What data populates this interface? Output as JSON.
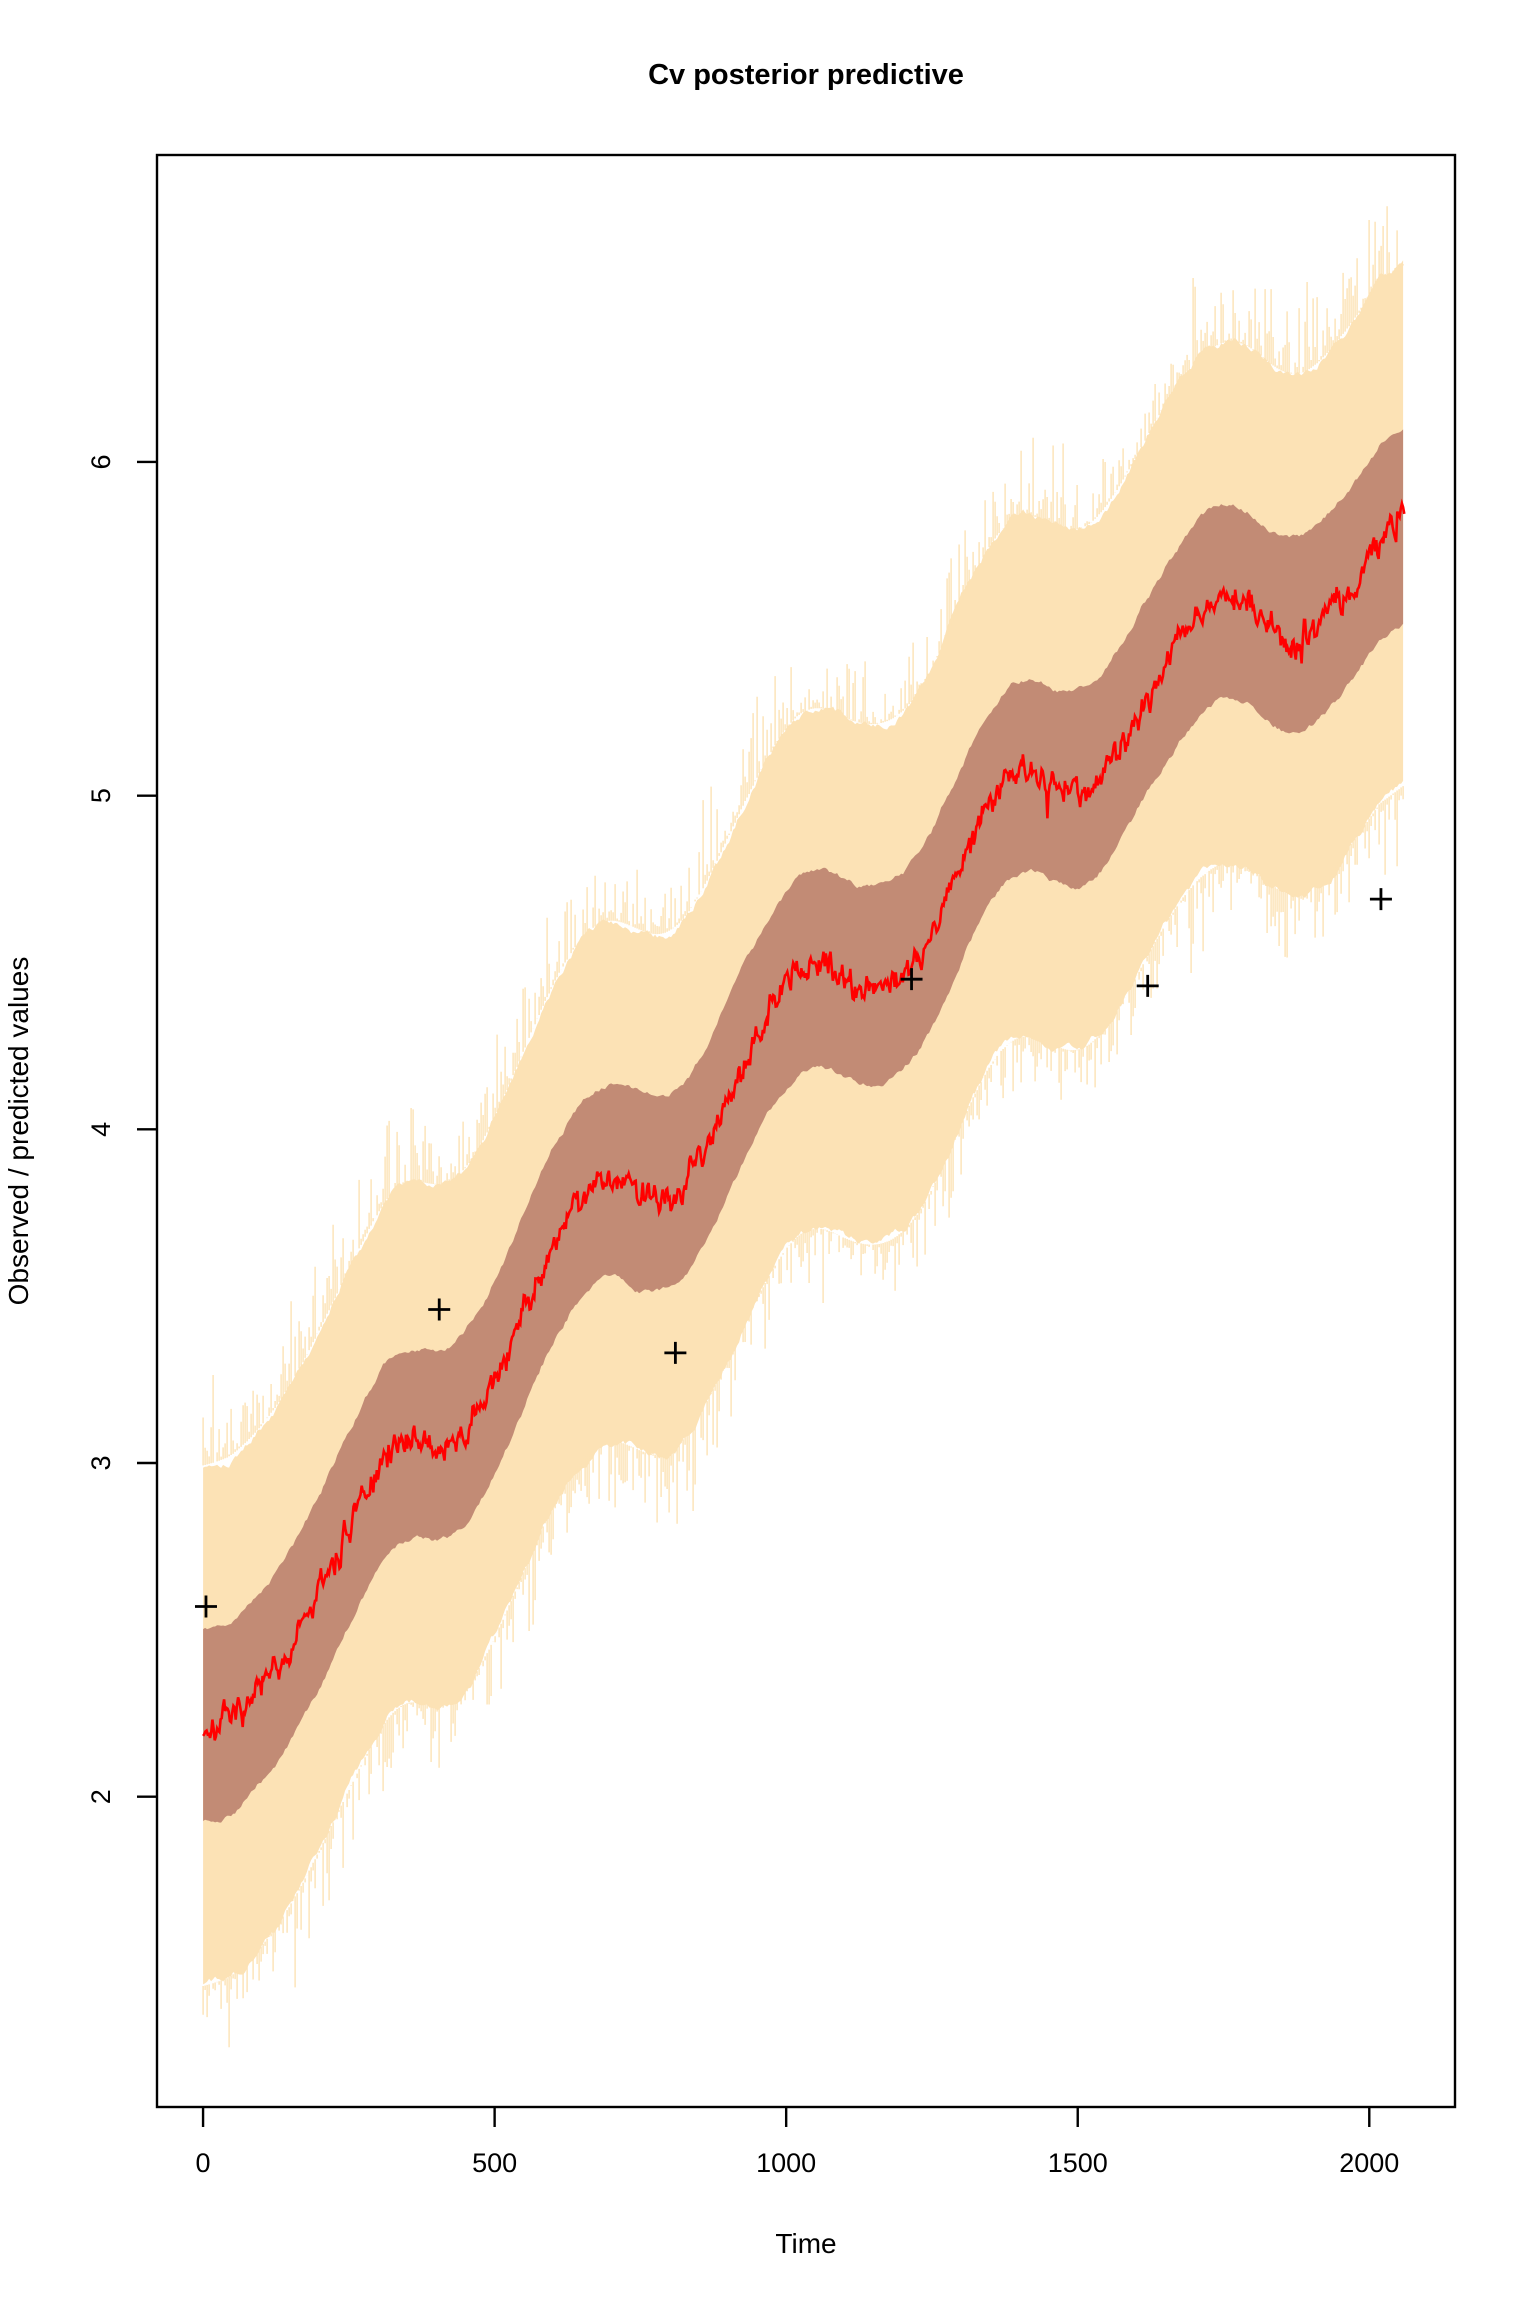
{
  "figure": {
    "title": "Cv posterior predictive",
    "xlabel": "Time",
    "ylabel": "Observed / predicted values"
  },
  "chart_data": {
    "type": "line",
    "title": "Cv posterior predictive",
    "xlabel": "Time",
    "ylabel": "Observed / predicted values",
    "x_ticks": [
      0,
      500,
      1000,
      1500,
      2000
    ],
    "y_ticks": [
      2,
      3,
      4,
      5,
      6
    ],
    "xlim": [
      -79,
      2147
    ],
    "ylim": [
      1.07,
      6.92
    ],
    "t_range": [
      0,
      2060
    ],
    "legend": "none",
    "grid": false,
    "series": [
      {
        "name": "posterior-mean",
        "style": "noisy-red-line",
        "anchors": [
          [
            0,
            2.2
          ],
          [
            50,
            2.24
          ],
          [
            100,
            2.33
          ],
          [
            150,
            2.45
          ],
          [
            200,
            2.62
          ],
          [
            250,
            2.8
          ],
          [
            300,
            2.97
          ],
          [
            330,
            3.06
          ],
          [
            360,
            3.08
          ],
          [
            400,
            3.04
          ],
          [
            440,
            3.07
          ],
          [
            480,
            3.18
          ],
          [
            520,
            3.33
          ],
          [
            560,
            3.5
          ],
          [
            600,
            3.66
          ],
          [
            640,
            3.78
          ],
          [
            680,
            3.85
          ],
          [
            720,
            3.85
          ],
          [
            760,
            3.8
          ],
          [
            800,
            3.8
          ],
          [
            840,
            3.88
          ],
          [
            880,
            4.02
          ],
          [
            920,
            4.17
          ],
          [
            960,
            4.31
          ],
          [
            1000,
            4.43
          ],
          [
            1040,
            4.5
          ],
          [
            1080,
            4.47
          ],
          [
            1130,
            4.43
          ],
          [
            1180,
            4.44
          ],
          [
            1220,
            4.5
          ],
          [
            1260,
            4.63
          ],
          [
            1300,
            4.8
          ],
          [
            1340,
            4.95
          ],
          [
            1380,
            5.05
          ],
          [
            1420,
            5.07
          ],
          [
            1460,
            5.03
          ],
          [
            1500,
            5.0
          ],
          [
            1540,
            5.06
          ],
          [
            1580,
            5.17
          ],
          [
            1620,
            5.3
          ],
          [
            1660,
            5.43
          ],
          [
            1700,
            5.52
          ],
          [
            1740,
            5.58
          ],
          [
            1780,
            5.59
          ],
          [
            1820,
            5.53
          ],
          [
            1860,
            5.47
          ],
          [
            1900,
            5.49
          ],
          [
            1940,
            5.57
          ],
          [
            1980,
            5.66
          ],
          [
            2020,
            5.76
          ],
          [
            2060,
            5.86
          ]
        ],
        "noise_amp": 0.04
      },
      {
        "name": "inner-credible-band",
        "style": "solid-band",
        "halfwidth": 0.29
      },
      {
        "name": "outer-credible-band",
        "style": "fringed-band",
        "halfwidth": 0.78,
        "fringe_max": 0.28
      }
    ],
    "observed_points": {
      "name": "observed-values",
      "marker": "+",
      "points": [
        [
          5,
          2.57
        ],
        [
          405,
          3.46
        ],
        [
          810,
          3.33
        ],
        [
          1215,
          4.45
        ],
        [
          1620,
          4.43
        ],
        [
          2020,
          4.69
        ]
      ]
    },
    "colors": {
      "outer_band": "#FCE2B5",
      "inner_band": "#C28B75",
      "mean_line": "#FF0000",
      "axis": "#000000",
      "background": "#FFFFFF"
    }
  }
}
